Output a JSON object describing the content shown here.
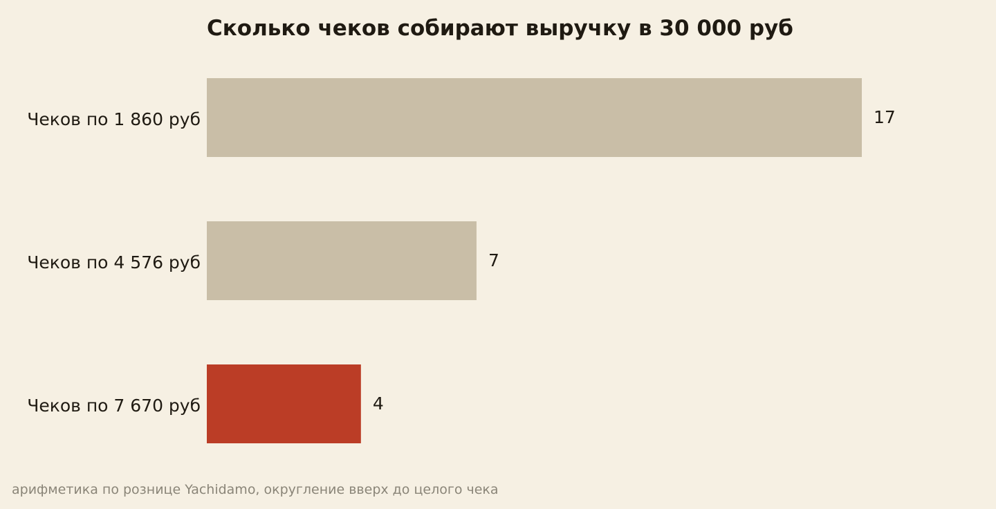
{
  "chart_data": {
    "type": "bar",
    "orientation": "horizontal",
    "title": "Сколько чеков собирают выручку в 30 000 руб",
    "xlabel": "",
    "ylabel": "",
    "categories": [
      "Чеков по 1 860 руб",
      "Чеков по 4 576 руб",
      "Чеков по 7 670 руб"
    ],
    "values": [
      17,
      7,
      4
    ],
    "value_labels": [
      "17",
      "7",
      "4"
    ],
    "xlim": [
      0,
      17
    ],
    "grid": false,
    "legend": "none",
    "colors": {
      "default_bar": "#c9bea7",
      "highlight_bar": "#bb3d26",
      "background": "#f6f0e3",
      "text": "#1f1a12",
      "note": "#8a8578"
    },
    "highlight_index": 2,
    "note": "арифметика по рознице Yachidamo, округление вверх до целого чека"
  }
}
